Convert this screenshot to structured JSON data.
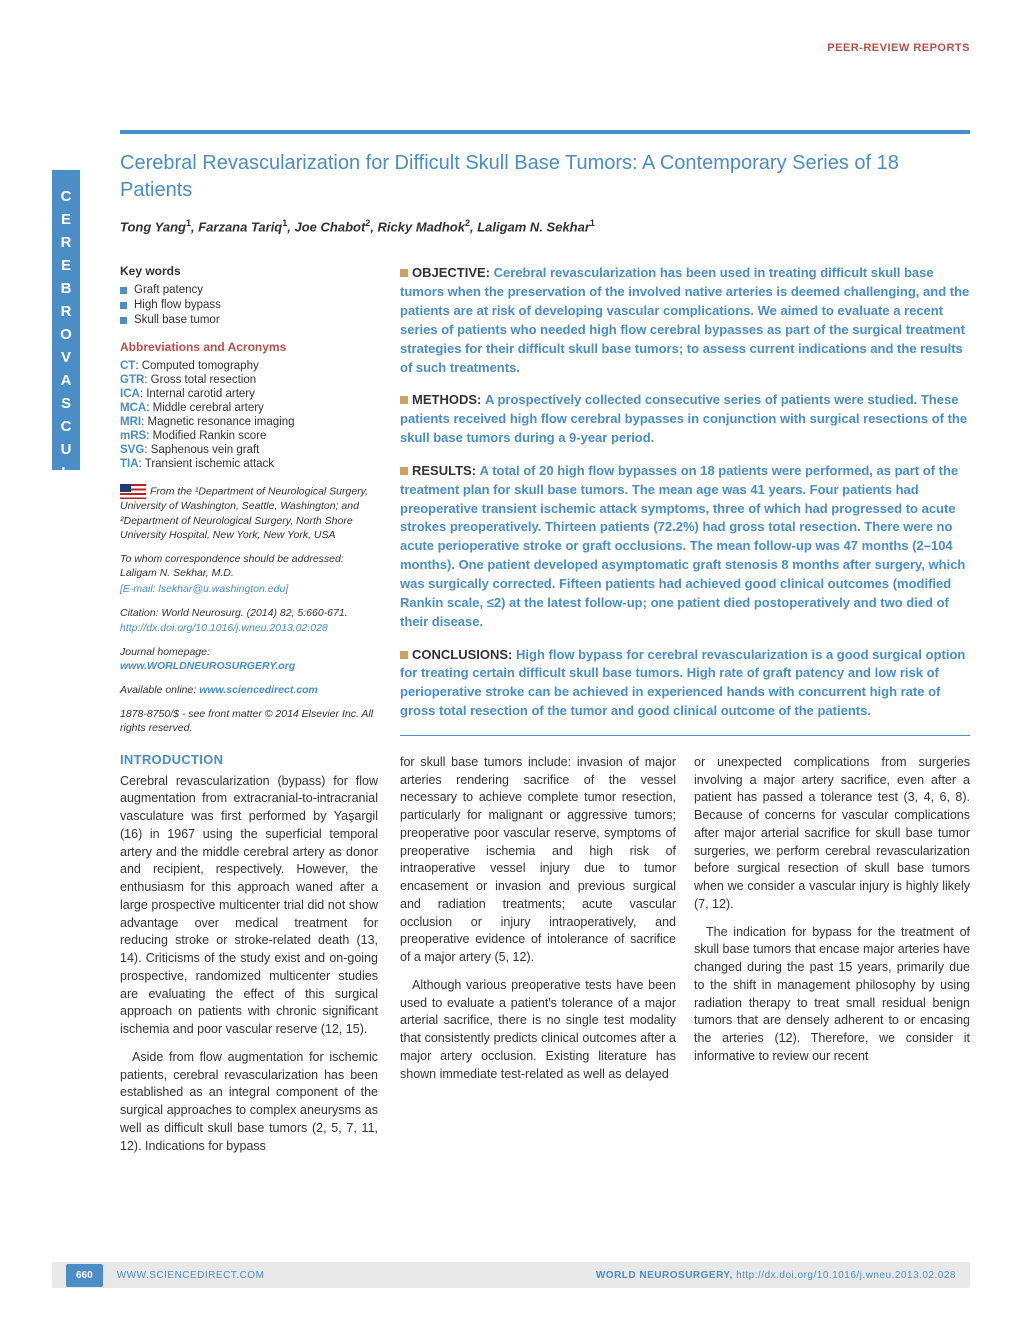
{
  "colors": {
    "primary": "#4a8dc7",
    "accent": "#d0a060",
    "header": "#b8504a",
    "text": "#333333",
    "background": "#ffffff",
    "footer_bg": "#e8e8e8"
  },
  "header_label": "PEER-REVIEW REPORTS",
  "sidebar_tab": "CEREBROVASCULAR",
  "title": "Cerebral Revascularization for Difficult Skull Base Tumors: A Contemporary Series of 18 Patients",
  "authors_html": "Tong Yang<sup>1</sup>, Farzana Tariq<sup>1</sup>, Joe Chabot<sup>2</sup>, Ricky Madhok<sup>2</sup>, Laligam N. Sekhar<sup>1</sup>",
  "keywords_head": "Key words",
  "keywords": [
    "Graft patency",
    "High flow bypass",
    "Skull base tumor"
  ],
  "abbr_head": "Abbreviations and Acronyms",
  "abbreviations": [
    {
      "k": "CT",
      "v": "Computed tomography"
    },
    {
      "k": "GTR",
      "v": "Gross total resection"
    },
    {
      "k": "ICA",
      "v": "Internal carotid artery"
    },
    {
      "k": "MCA",
      "v": "Middle cerebral artery"
    },
    {
      "k": "MRI",
      "v": "Magnetic resonance imaging"
    },
    {
      "k": "mRS",
      "v": "Modified Rankin score"
    },
    {
      "k": "SVG",
      "v": "Saphenous vein graft"
    },
    {
      "k": "TIA",
      "v": "Transient ischemic attack"
    }
  ],
  "affiliation": "From the ¹Department of Neurological Surgery, University of Washington, Seattle, Washington; and ²Department of Neurological Surgery, North Shore University Hospital, New York, New York, USA",
  "correspondence": "To whom correspondence should be addressed: Laligam N. Sekhar, M.D.",
  "email": "[E-mail: lsekhar@u.washington.edu]",
  "citation": "Citation: World Neurosurg. (2014) 82, 5:660-671.",
  "doi": "http://dx.doi.org/10.1016/j.wneu.2013.02.028",
  "journal_home": "Journal homepage: ",
  "journal_url": "www.WORLDNEUROSURGERY.org",
  "available": "Available online: ",
  "available_url": "www.sciencedirect.com",
  "copyright": "1878-8750/$ - see front matter © 2014 Elsevier Inc. All rights reserved.",
  "intro_head": "INTRODUCTION",
  "intro_p1": "Cerebral revascularization (bypass) for flow augmentation from extracranial-to-intracranial vasculature was first performed by Yaşargil (16) in 1967 using the superficial temporal artery and the middle cerebral artery as donor and recipient, respectively. However, the enthusiasm for this approach waned after a large prospective multicenter trial did not show advantage over medical treatment for reducing stroke or stroke-related death (13, 14). Criticisms of the study exist and on-going prospective, randomized multicenter studies are evaluating the effect of this surgical approach on patients with chronic significant ischemia and poor vascular reserve (12, 15).",
  "intro_p2": "Aside from flow augmentation for ischemic patients, cerebral revascularization has been established as an integral component of the surgical approaches to complex aneurysms as well as difficult skull base tumors (2, 5, 7, 11, 12). Indications for bypass",
  "abstract": {
    "objective_label": "OBJECTIVE:",
    "objective": "Cerebral revascularization has been used in treating difficult skull base tumors when the preservation of the involved native arteries is deemed challenging, and the patients are at risk of developing vascular complications. We aimed to evaluate a recent series of patients who needed high flow cerebral bypasses as part of the surgical treatment strategies for their difficult skull base tumors; to assess current indications and the results of such treatments.",
    "methods_label": "METHODS:",
    "methods": "A prospectively collected consecutive series of patients were studied. These patients received high flow cerebral bypasses in conjunction with surgical resections of the skull base tumors during a 9-year period.",
    "results_label": "RESULTS:",
    "results": "A total of 20 high flow bypasses on 18 patients were performed, as part of the treatment plan for skull base tumors. The mean age was 41 years. Four patients had preoperative transient ischemic attack symptoms, three of which had progressed to acute strokes preoperatively. Thirteen patients (72.2%) had gross total resection. There were no acute perioperative stroke or graft occlusions. The mean follow-up was 47 months (2–104 months). One patient developed asymptomatic graft stenosis 8 months after surgery, which was surgically corrected. Fifteen patients had achieved good clinical outcomes (modified Rankin scale, ≤2) at the latest follow-up; one patient died postoperatively and two died of their disease.",
    "conclusions_label": "CONCLUSIONS:",
    "conclusions": "High flow bypass for cerebral revascularization is a good surgical option for treating certain difficult skull base tumors. High rate of graft patency and low risk of perioperative stroke can be achieved in experienced hands with concurrent high rate of gross total resection of the tumor and good clinical outcome of the patients."
  },
  "col_a": "for skull base tumors include: invasion of major arteries rendering sacrifice of the vessel necessary to achieve complete tumor resection, particularly for malignant or aggressive tumors; preoperative poor vascular reserve, symptoms of preoperative ischemia and high risk of intraoperative vessel injury due to tumor encasement or invasion and previous surgical and radiation treatments; acute vascular occlusion or injury intraoperatively, and preoperative evidence of intolerance of sacrifice of a major artery (5, 12).",
  "col_a2": "Although various preoperative tests have been used to evaluate a patient's tolerance of a major arterial sacrifice, there is no single test modality that consistently predicts clinical outcomes after a major artery occlusion. Existing literature has shown immediate test-related as well as delayed",
  "col_b": "or unexpected complications from surgeries involving a major artery sacrifice, even after a patient has passed a tolerance test (3, 4, 6, 8). Because of concerns for vascular complications after major arterial sacrifice for skull base tumor surgeries, we perform cerebral revascularization before surgical resection of skull base tumors when we consider a vascular injury is highly likely (7, 12).",
  "col_b2": "The indication for bypass for the treatment of skull base tumors that encase major arteries have changed during the past 15 years, primarily due to the shift in management philosophy by using radiation therapy to treat small residual benign tumors that are densely adherent to or encasing the arteries (12). Therefore, we consider it informative to review our recent",
  "footer": {
    "page": "660",
    "left": "WWW.SCIENCEDIRECT.COM",
    "right_a": "WORLD NEUROSURGERY, ",
    "right_b": "http://dx.doi.org/10.1016/j.wneu.2013.02.028"
  }
}
